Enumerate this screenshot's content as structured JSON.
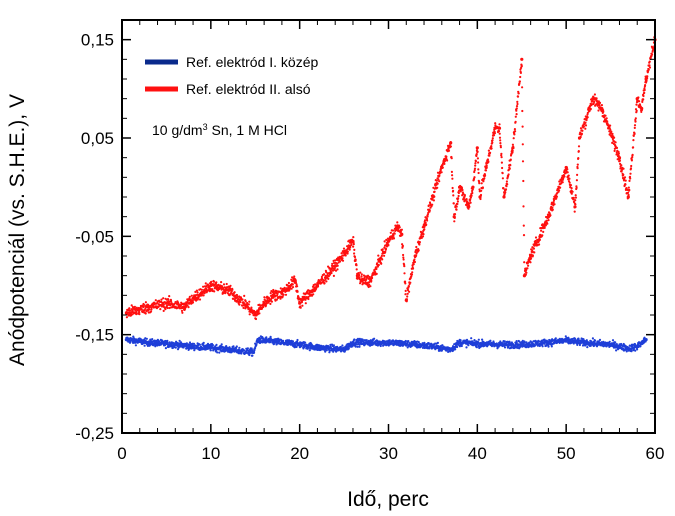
{
  "chart_data": {
    "type": "scatter",
    "title": "",
    "xlabel": "Idő, perc",
    "ylabel": "Anódpotenciál (vs. S.H.E.), V",
    "xlim": [
      0,
      60
    ],
    "ylim": [
      -0.25,
      0.17
    ],
    "x_ticks": [
      0,
      10,
      20,
      30,
      40,
      50,
      60
    ],
    "x_tick_labels": [
      "0",
      "10",
      "20",
      "30",
      "40",
      "50",
      "60"
    ],
    "y_ticks": [
      0.15,
      0.05,
      -0.05,
      -0.15,
      -0.25
    ],
    "y_tick_labels": [
      "0,15",
      "0,05",
      "-0,05",
      "-0,15",
      "-0,25"
    ],
    "annotation_parts": [
      "10 g/dm",
      "3",
      " Sn, 1 M HCl"
    ],
    "legend_position": "top-left",
    "series": [
      {
        "name": "Ref. elektród I. közép",
        "color": "#1f3fd8",
        "legend_color": "#0a2a8c",
        "noise": 0.006,
        "points": [
          [
            0.5,
            -0.155
          ],
          [
            3,
            -0.158
          ],
          [
            6,
            -0.16
          ],
          [
            8,
            -0.162
          ],
          [
            10,
            -0.163
          ],
          [
            12,
            -0.165
          ],
          [
            14.8,
            -0.168
          ],
          [
            15.3,
            -0.155
          ],
          [
            18,
            -0.158
          ],
          [
            20,
            -0.16
          ],
          [
            22,
            -0.163
          ],
          [
            25,
            -0.165
          ],
          [
            26,
            -0.158
          ],
          [
            30,
            -0.158
          ],
          [
            33,
            -0.16
          ],
          [
            35,
            -0.162
          ],
          [
            37,
            -0.165
          ],
          [
            38,
            -0.158
          ],
          [
            42,
            -0.16
          ],
          [
            45,
            -0.16
          ],
          [
            48,
            -0.158
          ],
          [
            50,
            -0.156
          ],
          [
            52,
            -0.158
          ],
          [
            55,
            -0.16
          ],
          [
            57,
            -0.164
          ],
          [
            58,
            -0.162
          ],
          [
            59,
            -0.155
          ]
        ]
      },
      {
        "name": "Ref. elektród II. alsó",
        "color": "#ff1010",
        "legend_color": "#ff1010",
        "noise": 0.01,
        "points": [
          [
            0.5,
            -0.128
          ],
          [
            3,
            -0.122
          ],
          [
            5,
            -0.118
          ],
          [
            7,
            -0.122
          ],
          [
            8,
            -0.113
          ],
          [
            10,
            -0.1
          ],
          [
            12,
            -0.105
          ],
          [
            14,
            -0.12
          ],
          [
            15,
            -0.13
          ],
          [
            16,
            -0.118
          ],
          [
            17,
            -0.11
          ],
          [
            18,
            -0.108
          ],
          [
            19.5,
            -0.095
          ],
          [
            20,
            -0.118
          ],
          [
            22,
            -0.1
          ],
          [
            24,
            -0.08
          ],
          [
            26,
            -0.055
          ],
          [
            26.5,
            -0.09
          ],
          [
            27,
            -0.095
          ],
          [
            28,
            -0.095
          ],
          [
            29,
            -0.075
          ],
          [
            30,
            -0.055
          ],
          [
            31,
            -0.04
          ],
          [
            31.5,
            -0.048
          ],
          [
            32,
            -0.115
          ],
          [
            33,
            -0.07
          ],
          [
            34,
            -0.04
          ],
          [
            35,
            -0.01
          ],
          [
            36,
            0.02
          ],
          [
            37,
            0.045
          ],
          [
            37.4,
            -0.03
          ],
          [
            38,
            0.0
          ],
          [
            39,
            -0.02
          ],
          [
            39.5,
            0.0
          ],
          [
            40,
            0.04
          ],
          [
            40.3,
            -0.01
          ],
          [
            41,
            0.02
          ],
          [
            42,
            0.06
          ],
          [
            42.5,
            0.06
          ],
          [
            43,
            -0.01
          ],
          [
            44,
            0.04
          ],
          [
            45,
            0.13
          ],
          [
            45.3,
            -0.09
          ],
          [
            46,
            -0.07
          ],
          [
            48,
            -0.03
          ],
          [
            50,
            0.02
          ],
          [
            51,
            -0.02
          ],
          [
            51.5,
            0.05
          ],
          [
            53,
            0.09
          ],
          [
            54,
            0.08
          ],
          [
            56,
            0.03
          ],
          [
            57,
            -0.01
          ],
          [
            58,
            0.09
          ],
          [
            58.5,
            0.08
          ],
          [
            59,
            0.11
          ],
          [
            60,
            0.15
          ]
        ]
      }
    ]
  }
}
